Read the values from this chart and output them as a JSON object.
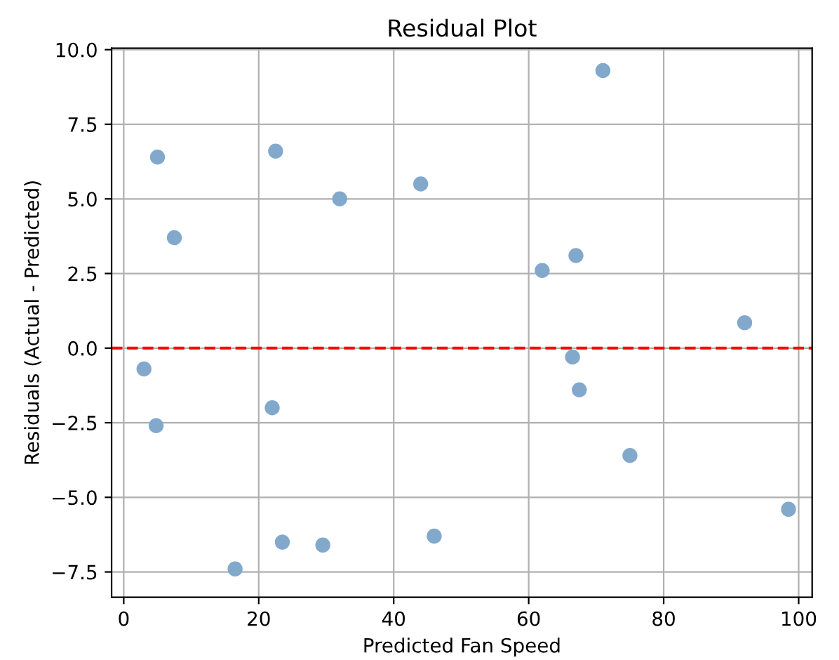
{
  "chart_data": {
    "type": "scatter",
    "title": "Residual Plot",
    "xlabel": "Predicted Fan Speed",
    "ylabel": "Residuals (Actual - Predicted)",
    "series": [
      {
        "color": "#82a9cc",
        "x": [
          5,
          7.5,
          3,
          4.8,
          22.5,
          32,
          22,
          16.5,
          23.5,
          29.5,
          44,
          46,
          62,
          67,
          66.5,
          67.5,
          71,
          75,
          92,
          98.5
        ],
        "values": [
          6.4,
          3.7,
          -0.7,
          -2.6,
          6.6,
          5.0,
          -2.0,
          -7.4,
          -6.5,
          -6.6,
          5.5,
          -6.3,
          2.6,
          3.1,
          -0.3,
          -1.4,
          9.3,
          -3.6,
          0.85,
          -5.4
        ]
      }
    ],
    "xlim": [
      -1.8,
      102
    ],
    "ylim": [
      -8.35,
      10.05
    ],
    "xticks": [
      0,
      20,
      40,
      60,
      80,
      100
    ],
    "yticks": [
      {
        "value": -7.5,
        "label": "−7.5"
      },
      {
        "value": -5.0,
        "label": "−5.0"
      },
      {
        "value": -2.5,
        "label": "−2.5"
      },
      {
        "value": 0,
        "label": "0.0"
      },
      {
        "value": 2.5,
        "label": "2.5"
      },
      {
        "value": 5.0,
        "label": "5.0"
      },
      {
        "value": 7.5,
        "label": "7.5"
      },
      {
        "value": 10.0,
        "label": "10.0"
      }
    ],
    "ref_lines": [
      {
        "axis": "y",
        "value": 0,
        "color": "#ff0000",
        "line_style": "dashed"
      }
    ],
    "grid": true,
    "marker": "circle"
  }
}
